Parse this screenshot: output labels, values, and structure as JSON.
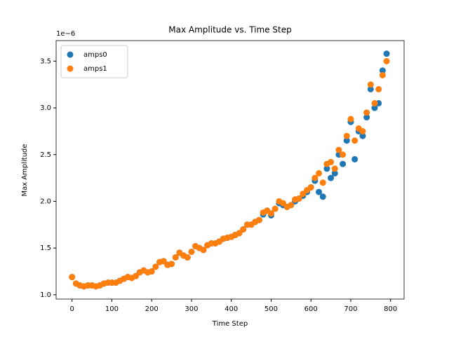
{
  "chart_data": {
    "type": "scatter",
    "title": "Max Amplitude vs. Time Step",
    "x_label": "Time Step",
    "y_label": "Max Amplitude",
    "y_offset_label": "1e−6",
    "x": [
      0,
      10,
      20,
      30,
      40,
      50,
      60,
      70,
      80,
      90,
      100,
      110,
      120,
      130,
      140,
      150,
      160,
      170,
      180,
      190,
      200,
      210,
      220,
      230,
      240,
      250,
      260,
      270,
      280,
      290,
      300,
      310,
      320,
      330,
      340,
      350,
      360,
      370,
      380,
      390,
      400,
      410,
      420,
      430,
      440,
      450,
      460,
      470,
      480,
      490,
      500,
      510,
      520,
      530,
      540,
      550,
      560,
      570,
      580,
      590,
      600,
      610,
      620,
      630,
      640,
      650,
      660,
      670,
      680,
      690,
      700,
      710,
      720,
      730,
      740,
      750,
      760,
      770,
      780,
      790
    ],
    "series": [
      {
        "name": "amps0",
        "color": "#1f77b4",
        "values": [
          1.19,
          1.12,
          1.1,
          1.09,
          1.1,
          1.1,
          1.09,
          1.1,
          1.12,
          1.13,
          1.13,
          1.13,
          1.15,
          1.17,
          1.19,
          1.18,
          1.2,
          1.24,
          1.26,
          1.24,
          1.25,
          1.3,
          1.35,
          1.36,
          1.32,
          1.33,
          1.4,
          1.45,
          1.42,
          1.4,
          1.46,
          1.52,
          1.5,
          1.48,
          1.53,
          1.55,
          1.55,
          1.57,
          1.6,
          1.61,
          1.62,
          1.64,
          1.66,
          1.7,
          1.75,
          1.75,
          1.78,
          1.8,
          1.86,
          1.9,
          1.85,
          1.92,
          1.98,
          1.96,
          1.94,
          1.96,
          2.0,
          2.03,
          2.06,
          2.1,
          2.15,
          2.22,
          2.1,
          2.05,
          2.35,
          2.25,
          2.3,
          2.5,
          2.4,
          2.65,
          2.85,
          2.45,
          2.75,
          2.7,
          2.9,
          3.2,
          3.0,
          3.05,
          3.4,
          3.58
        ]
      },
      {
        "name": "amps1",
        "color": "#ff7f0e",
        "values": [
          1.19,
          1.12,
          1.1,
          1.09,
          1.1,
          1.1,
          1.09,
          1.1,
          1.12,
          1.13,
          1.13,
          1.13,
          1.15,
          1.17,
          1.19,
          1.18,
          1.2,
          1.24,
          1.26,
          1.24,
          1.25,
          1.3,
          1.35,
          1.36,
          1.32,
          1.33,
          1.4,
          1.45,
          1.42,
          1.4,
          1.46,
          1.52,
          1.5,
          1.48,
          1.53,
          1.55,
          1.55,
          1.57,
          1.6,
          1.61,
          1.62,
          1.64,
          1.66,
          1.7,
          1.75,
          1.75,
          1.78,
          1.8,
          1.88,
          1.9,
          1.87,
          1.92,
          2.0,
          1.98,
          1.94,
          1.96,
          2.02,
          2.03,
          2.08,
          2.12,
          2.15,
          2.25,
          2.3,
          2.2,
          2.4,
          2.42,
          2.35,
          2.55,
          2.5,
          2.7,
          2.88,
          2.65,
          2.78,
          2.75,
          2.95,
          3.25,
          3.05,
          3.2,
          3.35,
          3.5
        ]
      }
    ],
    "xlim": [
      -40,
      834
    ],
    "ylim": [
      0.954,
      3.72
    ],
    "xticks": [
      0,
      100,
      200,
      300,
      400,
      500,
      600,
      700,
      800
    ],
    "yticks": [
      {
        "value": 1,
        "label": "1.0"
      },
      1.5,
      {
        "value": 2,
        "label": "2.0"
      },
      2.5,
      {
        "value": 3,
        "label": "3.0"
      },
      3.5
    ],
    "legend": "upper left"
  }
}
